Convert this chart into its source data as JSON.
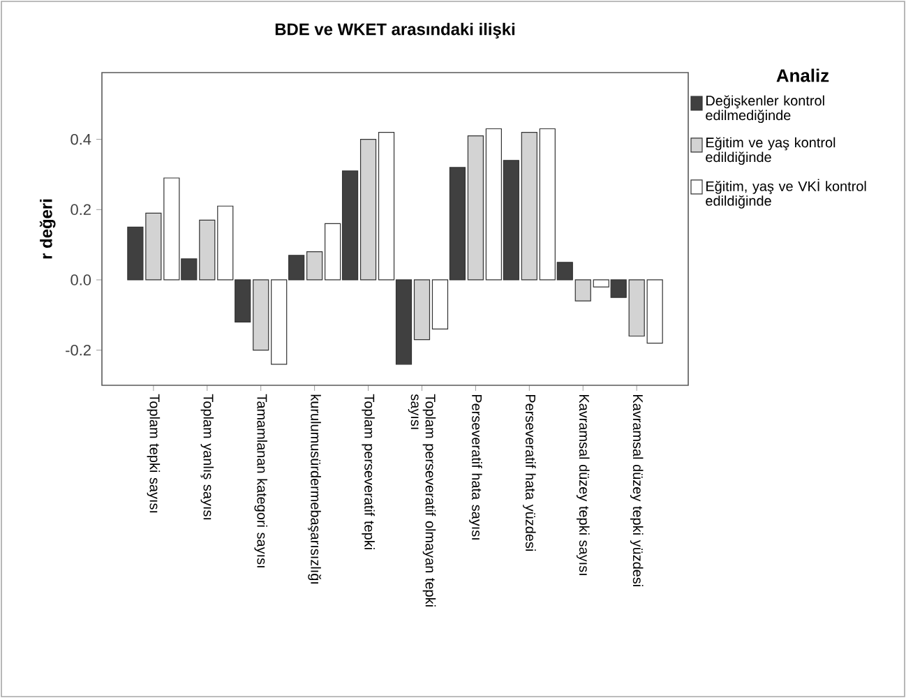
{
  "chart_data": {
    "type": "bar",
    "title": "BDE ve WKET arasındaki ilişki",
    "ylabel": "r değeri",
    "legend_title": "Analiz",
    "legend": "right",
    "categories": [
      "Toplam tepki sayısı",
      "Toplam yanlış sayısı",
      "Tamamlanan kategori sayısı",
      "kurulumusürdermebaşarısızlığı",
      "Toplam perseveratif tepki",
      "Toplam perseveratif olmayan tepki sayısı",
      "Perseveratif hata sayısı",
      "Perseveratif hata yüzdesi",
      "Kavramsal düzey tepki sayısı",
      "Kavramsal düzey tepki yüzdesi"
    ],
    "series": [
      {
        "name": "Değişkenler kontrol edilmediğinde",
        "color": "#404040",
        "values": [
          0.15,
          0.06,
          -0.12,
          0.07,
          0.31,
          -0.24,
          0.32,
          0.34,
          0.05,
          -0.05
        ]
      },
      {
        "name": "Eğitim ve yaş kontrol edildiğinde",
        "color": "#d3d3d3",
        "values": [
          0.19,
          0.17,
          -0.2,
          0.08,
          0.4,
          -0.17,
          0.41,
          0.42,
          -0.06,
          -0.16
        ]
      },
      {
        "name": "Eğitim, yaş ve VKİ kontrol edildiğinde",
        "color": "#ffffff",
        "values": [
          0.29,
          0.21,
          -0.24,
          0.16,
          0.42,
          -0.14,
          0.43,
          0.43,
          -0.02,
          -0.18
        ]
      }
    ],
    "ylim": [
      -0.3,
      0.59
    ],
    "yticks": [
      -0.2,
      {
        "value": 0,
        "label": "0.0"
      },
      0.2,
      0.4
    ]
  }
}
